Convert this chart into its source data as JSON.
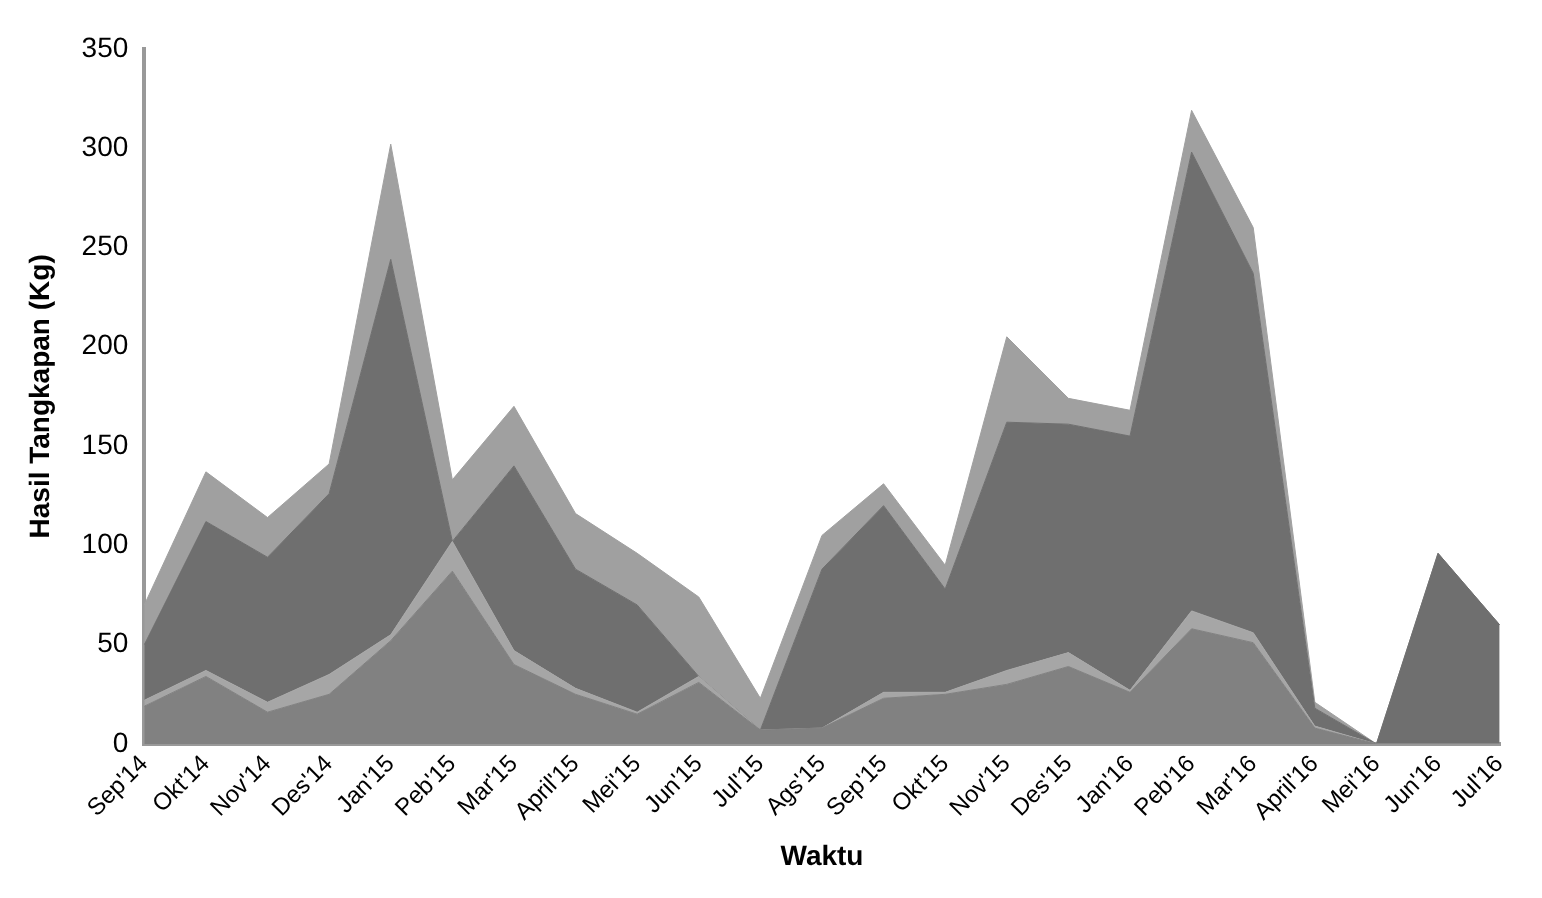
{
  "chart_data": {
    "type": "area",
    "stacked": true,
    "xlabel": "Waktu",
    "ylabel": "Hasil Tangkapan (Kg)",
    "categories": [
      "Sep'14",
      "Okt'14",
      "Nov'14",
      "Des'14",
      "Jan'15",
      "Peb'15",
      "Mar'15",
      "April'15",
      "Mei'15",
      "Jun'15",
      "Jul'15",
      "Ags'15",
      "Sep'15",
      "Okt'15",
      "Nov'15",
      "Des'15",
      "Jan'16",
      "Peb'16",
      "Mar'16",
      "April'16",
      "Mei'16",
      "Jun'16",
      "Jul'16"
    ],
    "series": [
      {
        "color": "#818181",
        "values": [
          19,
          34,
          16,
          25,
          52,
          87,
          40,
          25,
          15,
          31,
          7,
          8,
          23,
          25,
          30,
          39,
          26,
          58,
          51,
          8,
          0,
          0,
          0
        ]
      },
      {
        "color": "#a6a6a6",
        "values": [
          3,
          3,
          5,
          10,
          3,
          15,
          7,
          3,
          1,
          3,
          0,
          0,
          3,
          1,
          7,
          7,
          1,
          9,
          5,
          1,
          0,
          0,
          0
        ]
      },
      {
        "color": "#6f6f6f",
        "values": [
          28,
          75,
          73,
          91,
          189,
          0,
          93,
          60,
          54,
          0,
          0,
          80,
          94,
          52,
          125,
          115,
          128,
          231,
          181,
          9,
          0,
          96,
          60
        ]
      },
      {
        "color": "#a0a0a0",
        "values": [
          20,
          25,
          20,
          15,
          58,
          31,
          30,
          28,
          26,
          40,
          16,
          17,
          11,
          12,
          43,
          13,
          13,
          21,
          23,
          3,
          0,
          0,
          0
        ]
      }
    ],
    "ylim": [
      0,
      350
    ],
    "yticks": [
      0,
      50,
      100,
      150,
      200,
      250,
      300,
      350
    ],
    "grid": false,
    "legend": false,
    "marker": "none"
  }
}
